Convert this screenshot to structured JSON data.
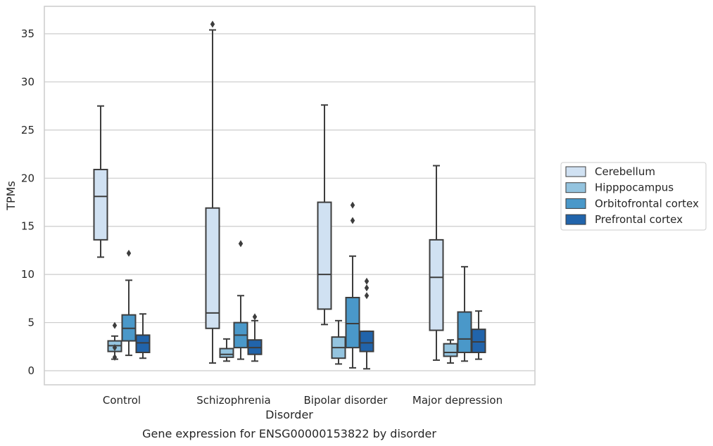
{
  "chart_data": {
    "type": "box",
    "title": "Gene expression for ENSG00000153822 by disorder",
    "xlabel": "Disorder",
    "ylabel": "TPMs",
    "ylim": [
      -1.5,
      37.5
    ],
    "yticks": [
      0,
      5,
      10,
      15,
      20,
      25,
      30,
      35
    ],
    "grid": true,
    "legend_position": "right",
    "categories": [
      "Control",
      "Schizophrenia",
      "Bipolar disorder",
      "Major depression"
    ],
    "series": [
      {
        "name": "Cerebellum",
        "color": "#d0e1f2",
        "boxes": [
          {
            "whislo": 11.8,
            "q1": 13.6,
            "med": 18.1,
            "q3": 20.9,
            "whishi": 27.5,
            "fliers": []
          },
          {
            "whislo": 0.8,
            "q1": 4.4,
            "med": 6.0,
            "q3": 16.9,
            "whishi": 35.4,
            "fliers": [
              36.0
            ]
          },
          {
            "whislo": 4.8,
            "q1": 6.4,
            "med": 10.0,
            "q3": 17.5,
            "whishi": 27.6,
            "fliers": []
          },
          {
            "whislo": 1.1,
            "q1": 4.2,
            "med": 9.7,
            "q3": 13.6,
            "whishi": 21.3,
            "fliers": []
          }
        ]
      },
      {
        "name": "Hipppocampus",
        "color": "#94c4df",
        "boxes": [
          {
            "whislo": 1.2,
            "q1": 2.0,
            "med": 2.6,
            "q3": 3.1,
            "whishi": 3.6,
            "fliers": [
              1.4,
              2.4,
              4.7
            ]
          },
          {
            "whislo": 1.0,
            "q1": 1.4,
            "med": 1.7,
            "q3": 2.3,
            "whishi": 3.3,
            "fliers": []
          },
          {
            "whislo": 0.7,
            "q1": 1.3,
            "med": 2.4,
            "q3": 3.5,
            "whishi": 5.2,
            "fliers": []
          },
          {
            "whislo": 0.8,
            "q1": 1.5,
            "med": 1.9,
            "q3": 2.8,
            "whishi": 3.2,
            "fliers": []
          }
        ]
      },
      {
        "name": "Orbitofrontal cortex",
        "color": "#4a98c9",
        "boxes": [
          {
            "whislo": 1.6,
            "q1": 3.1,
            "med": 4.4,
            "q3": 5.8,
            "whishi": 9.4,
            "fliers": [
              12.2
            ]
          },
          {
            "whislo": 1.2,
            "q1": 2.4,
            "med": 3.7,
            "q3": 5.0,
            "whishi": 7.8,
            "fliers": [
              13.2
            ]
          },
          {
            "whislo": 0.3,
            "q1": 2.4,
            "med": 4.9,
            "q3": 7.6,
            "whishi": 11.9,
            "fliers": [
              15.6,
              17.2
            ]
          },
          {
            "whislo": 1.0,
            "q1": 1.9,
            "med": 3.3,
            "q3": 6.1,
            "whishi": 10.8,
            "fliers": []
          }
        ]
      },
      {
        "name": "Prefrontal cortex",
        "color": "#2164ab",
        "boxes": [
          {
            "whislo": 1.3,
            "q1": 1.9,
            "med": 2.9,
            "q3": 3.7,
            "whishi": 5.9,
            "fliers": []
          },
          {
            "whislo": 1.0,
            "q1": 1.7,
            "med": 2.4,
            "q3": 3.2,
            "whishi": 5.2,
            "fliers": [
              5.6
            ]
          },
          {
            "whislo": 0.2,
            "q1": 2.0,
            "med": 2.9,
            "q3": 4.1,
            "whishi": 4.1,
            "fliers": [
              7.8,
              8.6,
              9.3
            ]
          },
          {
            "whislo": 1.2,
            "q1": 1.9,
            "med": 3.0,
            "q3": 4.3,
            "whishi": 6.2,
            "fliers": []
          }
        ]
      }
    ]
  }
}
